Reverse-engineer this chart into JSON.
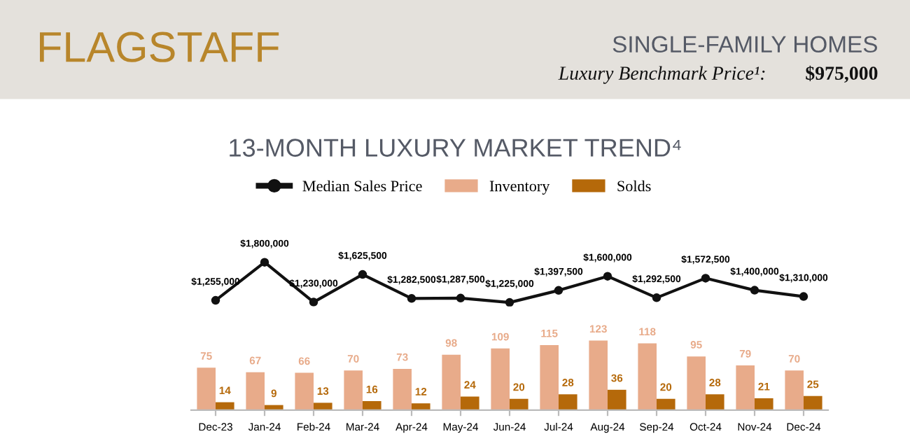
{
  "chart_data": [
    {
      "type": "line",
      "title": "13-MONTH LUXURY MARKET TREND⁴",
      "annotations": [
        "FLAGSTAFF",
        "SINGLE-FAMILY HOMES",
        "Luxury Benchmark Price¹:",
        "$975,000"
      ],
      "categories": [
        null,
        null,
        null,
        null,
        null,
        null,
        null,
        null,
        null,
        null,
        null,
        null,
        null
      ],
      "series": [
        {
          "name": "Median Sales Price",
          "color": "#111111",
          "values": [
            1255000,
            1800000,
            1230000,
            1625500,
            1282500,
            1287500,
            1225000,
            1397500,
            1600000,
            1292500,
            1572500,
            1400000,
            1310000
          ],
          "value_labels": [
            "$1,255,000",
            "$1,800,000",
            "$1,230,000",
            "$1,625,500",
            "$1,282,500",
            "$1,287,500",
            "$1,225,000",
            "$1,397,500",
            "$1,600,000",
            "$1,292,500",
            "$1,572,500",
            "$1,400,000",
            "$1,310,000"
          ]
        }
      ],
      "marker": "circle",
      "line_style": "solid",
      "grid": false,
      "legend": "top",
      "tick_labels": false
    },
    {
      "type": "bar",
      "categories": [
        "Dec-23",
        "Jan-24",
        "Feb-24",
        "Mar-24",
        "Apr-24",
        "May-24",
        "Jun-24",
        "Jul-24",
        "Aug-24",
        "Sep-24",
        "Oct-24",
        "Nov-24",
        "Dec-24"
      ],
      "series": [
        {
          "name": "Inventory",
          "color": "#e8ab8a",
          "values": [
            75,
            67,
            66,
            70,
            73,
            98,
            109,
            115,
            123,
            118,
            95,
            79,
            70
          ]
        },
        {
          "name": "Solds",
          "color": "#b5690a",
          "values": [
            14,
            9,
            13,
            16,
            12,
            24,
            20,
            28,
            36,
            20,
            28,
            21,
            25
          ]
        }
      ],
      "data_labels": true,
      "grid": false,
      "legend": "top",
      "tick_labels": "x"
    }
  ]
}
